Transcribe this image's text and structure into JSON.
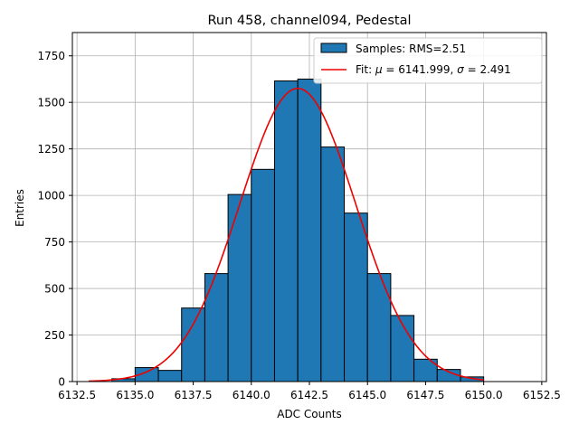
{
  "chart_data": {
    "type": "bar",
    "title": "Run 458, channel094, Pedestal",
    "xlabel": "ADC Counts",
    "ylabel": "Entries",
    "xlim": [
      6132.3,
      6152.7
    ],
    "ylim": [
      0,
      1875
    ],
    "xticks": [
      6132.5,
      6135.0,
      6137.5,
      6140.0,
      6142.5,
      6145.0,
      6147.5,
      6150.0,
      6152.5
    ],
    "xtick_labels": [
      "6132.5",
      "6135.0",
      "6137.5",
      "6140.0",
      "6142.5",
      "6145.0",
      "6147.5",
      "6150.0",
      "6152.5"
    ],
    "yticks": [
      0,
      250,
      500,
      750,
      1000,
      1250,
      1500,
      1750
    ],
    "ytick_labels": [
      "0",
      "250",
      "500",
      "750",
      "1000",
      "1250",
      "1500",
      "1750"
    ],
    "grid": true,
    "legend_position": "top-right",
    "histogram": {
      "name": "Samples: RMS=2.51",
      "color": "#1f77b4",
      "bin_edges": [
        6134,
        6135,
        6136,
        6137,
        6138,
        6139,
        6140,
        6141,
        6142,
        6143,
        6144,
        6145,
        6146,
        6147,
        6148,
        6149,
        6150
      ],
      "counts": [
        15,
        75,
        60,
        395,
        580,
        1005,
        1140,
        1615,
        1625,
        1260,
        905,
        580,
        355,
        120,
        65,
        25
      ]
    },
    "fit": {
      "name": "Fit: μ = 6141.999, σ = 2.491",
      "name_parts": {
        "prefix": "Fit: ",
        "mu": "μ",
        "mu_val": " = 6141.999, ",
        "sigma": "σ",
        "sigma_val": " = 2.491"
      },
      "color": "#ee0000",
      "mu": 6141.999,
      "sigma": 2.491,
      "amplitude": 1575,
      "x_range": [
        6133,
        6150
      ]
    }
  }
}
